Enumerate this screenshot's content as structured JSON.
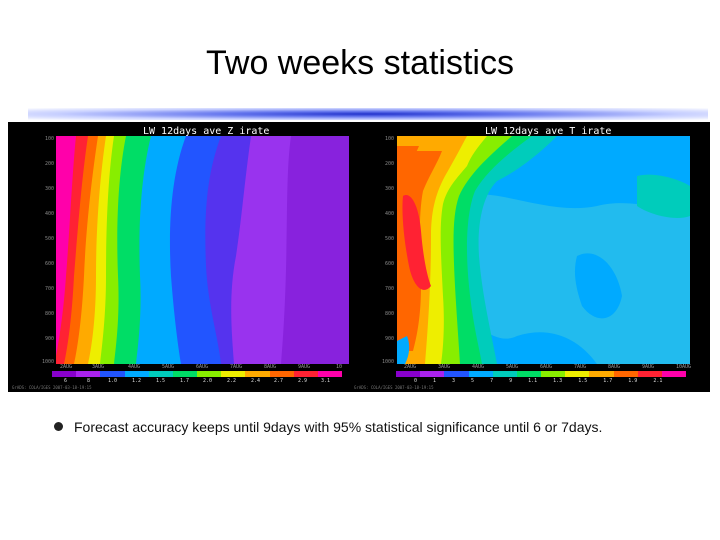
{
  "slide": {
    "title": "Two weeks statistics",
    "bullet": "Forecast accuracy keeps until 9days with 95% statistical significance until 6 or 7days."
  },
  "panels": [
    {
      "title": "LW_12days_ave  Z  irate",
      "yticks": [
        "100",
        "200",
        "300",
        "400",
        "500",
        "600",
        "700",
        "800",
        "900",
        "1000"
      ],
      "xticks": [
        "2AUG",
        "3AUG",
        "4AUG",
        "5AUG",
        "6AUG",
        "7AUG",
        "8AUG",
        "9AUG",
        "10"
      ],
      "colorbar_labels": [
        "6",
        "8",
        "1.0",
        "1.2",
        "1.5",
        "1.7",
        "2.0",
        "2.2",
        "2.4",
        "2.7",
        "2.9",
        "3.1"
      ],
      "footer": "GrADS: COLA/IGES        2007-03-18-19:15"
    },
    {
      "title": "LW_12days_ave  T  irate",
      "yticks": [
        "100",
        "200",
        "300",
        "400",
        "500",
        "600",
        "700",
        "800",
        "900",
        "1000"
      ],
      "xticks": [
        "2AUG",
        "3AUG",
        "4AUG",
        "5AUG",
        "6AUG",
        "7AUG",
        "8AUG",
        "9AUG",
        "10AUG"
      ],
      "colorbar_labels": "0 1 3 5 7 9 1.1 1.3 1.5 1.7 1.9 2.1",
      "footer": "GrADS: COLA/IGES        2007-03-18-19:15"
    }
  ],
  "colors": {
    "colorbar": [
      "#8800cc",
      "#aa22ee",
      "#2255ff",
      "#00aaff",
      "#00ccbb",
      "#00dd66",
      "#88ee00",
      "#eeee00",
      "#ffaa00",
      "#ff6600",
      "#ff2233",
      "#ff00aa"
    ]
  }
}
